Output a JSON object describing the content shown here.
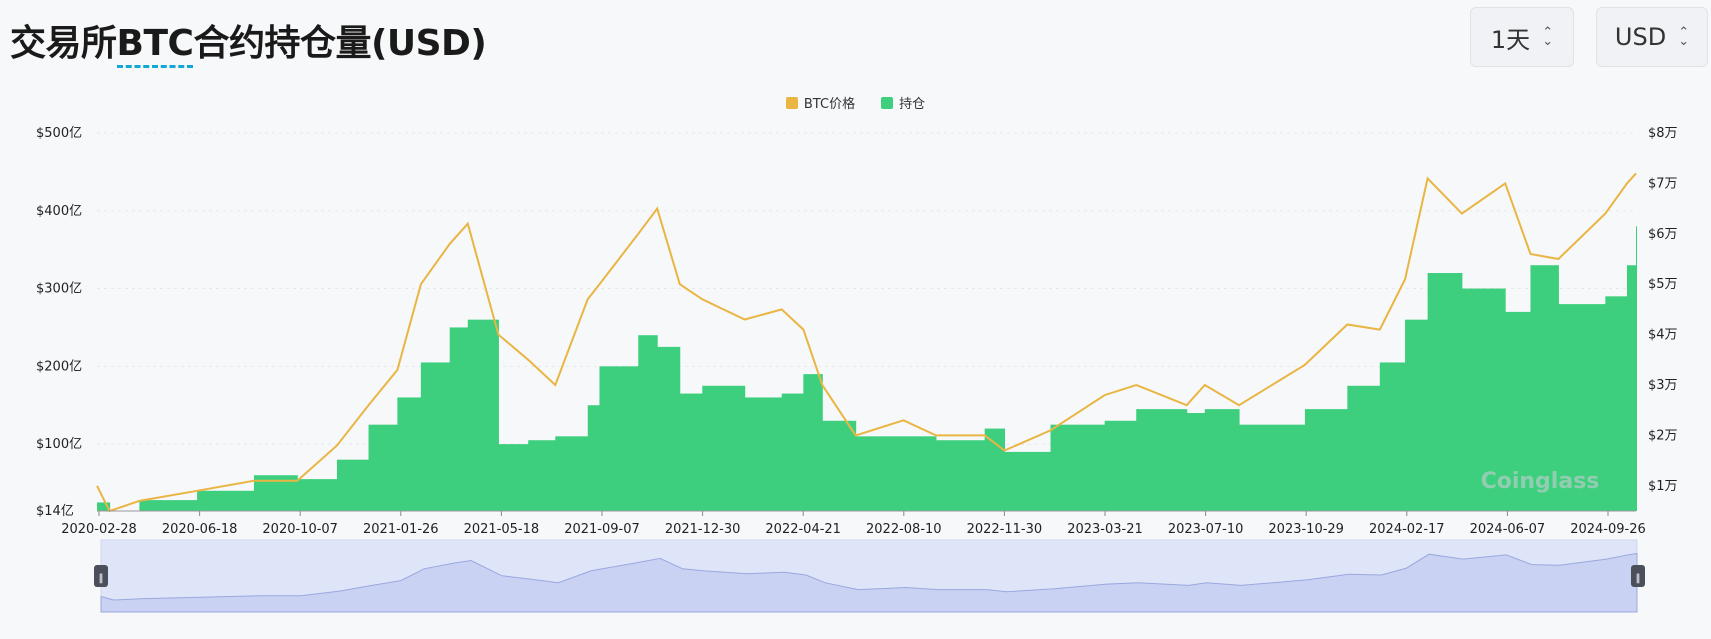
{
  "header": {
    "title_prefix": "交易所",
    "title_highlight": "BTC",
    "title_suffix": "合约持仓量(USD)"
  },
  "controls": {
    "period": "1天",
    "currency": "USD"
  },
  "legend": [
    {
      "label": "BTC价格",
      "color": "#e9b543"
    },
    {
      "label": "持仓",
      "color": "#3ecf7e"
    }
  ],
  "watermark": "Coinglass",
  "chart_data": {
    "type": "bar",
    "title": "交易所BTC合约持仓量(USD)",
    "x_ticks": [
      "2020-02-28",
      "2020-06-18",
      "2020-10-07",
      "2021-01-26",
      "2021-05-18",
      "2021-09-07",
      "2021-12-30",
      "2022-04-21",
      "2022-08-10",
      "2022-11-30",
      "2023-03-21",
      "2023-07-10",
      "2023-10-29",
      "2024-02-17",
      "2024-06-07",
      "2024-09-26"
    ],
    "y_left": {
      "ticks": [
        "$14亿",
        "$100亿",
        "$200亿",
        "$300亿",
        "$400亿",
        "$500亿"
      ],
      "tick_values": [
        14,
        100,
        200,
        300,
        400,
        500
      ],
      "range": [
        14,
        500
      ],
      "unit": "亿 USD"
    },
    "y_right": {
      "ticks": [
        "$1万",
        "$2万",
        "$3万",
        "$4万",
        "$5万",
        "$6万",
        "$7万",
        "$8万"
      ],
      "tick_values": [
        1,
        2,
        3,
        4,
        5,
        6,
        7,
        8
      ],
      "range": [
        0.5,
        8
      ],
      "unit": "万 USD"
    },
    "series": [
      {
        "name": "持仓",
        "type": "bar",
        "color": "#3ecf7e",
        "x": [
          "2020-02-28",
          "2020-03-13",
          "2020-04-15",
          "2020-06-18",
          "2020-08-20",
          "2020-10-07",
          "2020-11-20",
          "2020-12-25",
          "2021-01-26",
          "2021-02-21",
          "2021-03-25",
          "2021-04-14",
          "2021-05-18",
          "2021-06-20",
          "2021-07-20",
          "2021-08-25",
          "2021-09-07",
          "2021-10-20",
          "2021-11-10",
          "2021-12-05",
          "2021-12-30",
          "2022-02-15",
          "2022-03-28",
          "2022-04-21",
          "2022-05-12",
          "2022-06-18",
          "2022-08-10",
          "2022-09-15",
          "2022-11-08",
          "2022-11-30",
          "2023-01-20",
          "2023-03-21",
          "2023-04-25",
          "2023-06-20",
          "2023-07-10",
          "2023-08-17",
          "2023-10-29",
          "2023-12-15",
          "2024-01-20",
          "2024-02-17",
          "2024-03-13",
          "2024-04-20",
          "2024-06-07",
          "2024-07-05",
          "2024-08-05",
          "2024-09-26",
          "2024-10-20",
          "2024-10-30"
        ],
        "values": [
          25,
          12,
          28,
          40,
          60,
          55,
          80,
          125,
          160,
          205,
          250,
          260,
          100,
          105,
          110,
          150,
          200,
          240,
          225,
          165,
          175,
          160,
          165,
          190,
          130,
          110,
          110,
          105,
          120,
          90,
          125,
          130,
          145,
          140,
          145,
          125,
          145,
          175,
          205,
          260,
          320,
          300,
          270,
          330,
          280,
          290,
          330,
          380
        ]
      },
      {
        "name": "BTC价格",
        "type": "line",
        "color": "#e9b543",
        "x": [
          "2020-02-28",
          "2020-03-13",
          "2020-04-15",
          "2020-06-18",
          "2020-08-20",
          "2020-10-07",
          "2020-11-20",
          "2020-12-25",
          "2021-01-26",
          "2021-02-21",
          "2021-03-25",
          "2021-04-14",
          "2021-05-18",
          "2021-06-20",
          "2021-07-20",
          "2021-08-25",
          "2021-09-07",
          "2021-10-20",
          "2021-11-10",
          "2021-12-05",
          "2021-12-30",
          "2022-02-15",
          "2022-03-28",
          "2022-04-21",
          "2022-05-12",
          "2022-06-18",
          "2022-08-10",
          "2022-09-15",
          "2022-11-08",
          "2022-11-30",
          "2023-01-20",
          "2023-03-21",
          "2023-04-25",
          "2023-06-20",
          "2023-07-10",
          "2023-08-17",
          "2023-10-29",
          "2023-12-15",
          "2024-01-20",
          "2024-02-17",
          "2024-03-13",
          "2024-04-20",
          "2024-06-07",
          "2024-07-05",
          "2024-08-05",
          "2024-09-26",
          "2024-10-20",
          "2024-10-30"
        ],
        "values": [
          1.0,
          0.5,
          0.7,
          0.9,
          1.1,
          1.1,
          1.8,
          2.6,
          3.3,
          5.0,
          5.8,
          6.2,
          4.0,
          3.5,
          3.0,
          4.7,
          5.0,
          6.0,
          6.5,
          5.0,
          4.7,
          4.3,
          4.5,
          4.1,
          3.0,
          2.0,
          2.3,
          2.0,
          2.0,
          1.7,
          2.1,
          2.8,
          3.0,
          2.6,
          3.0,
          2.6,
          3.4,
          4.2,
          4.1,
          5.1,
          7.1,
          6.4,
          7.0,
          5.6,
          5.5,
          6.4,
          7.0,
          7.2
        ]
      }
    ],
    "grid": true,
    "legend_position": "top-center"
  }
}
